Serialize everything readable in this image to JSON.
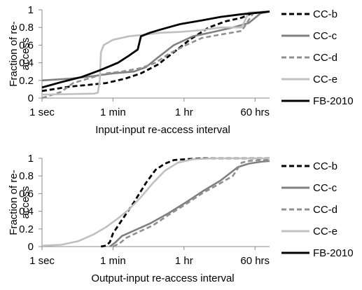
{
  "chart_data": [
    {
      "type": "line",
      "xlabel": "Input-input re-access interval",
      "ylabel": "Fraction of re-access",
      "ylabel_lines": [
        "Fraction of re-",
        "access"
      ],
      "x_scale": "log",
      "x_unit": "seconds",
      "xlim": [
        1,
        500000
      ],
      "ylim": [
        0,
        1
      ],
      "x_ticks": [
        {
          "value": 1,
          "label": "1 sec"
        },
        {
          "value": 60,
          "label": "1 min"
        },
        {
          "value": 3600,
          "label": "1 hr"
        },
        {
          "value": 216000,
          "label": "60 hrs"
        }
      ],
      "y_ticks": [
        0,
        0.2,
        0.4,
        0.6,
        0.8,
        1
      ],
      "grid": false,
      "legend": "right",
      "series": [
        {
          "name": "CC-b",
          "color": "#000000",
          "dash": "dashed",
          "x": [
            1,
            5,
            15,
            40,
            120,
            300,
            800,
            2000,
            5000,
            15000,
            40000,
            100000,
            200000,
            500000
          ],
          "y": [
            0.08,
            0.13,
            0.15,
            0.17,
            0.22,
            0.28,
            0.38,
            0.52,
            0.66,
            0.8,
            0.87,
            0.91,
            0.97,
            0.98
          ]
        },
        {
          "name": "CC-c",
          "color": "#808080",
          "dash": "solid",
          "x": [
            1,
            5,
            20,
            60,
            200,
            400,
            800,
            2000,
            6000,
            20000,
            60000,
            150000,
            300000,
            500000
          ],
          "y": [
            0.2,
            0.22,
            0.25,
            0.28,
            0.3,
            0.35,
            0.46,
            0.6,
            0.7,
            0.75,
            0.8,
            0.85,
            0.96,
            0.98
          ]
        },
        {
          "name": "CC-d",
          "color": "#909090",
          "dash": "dashed",
          "x": [
            1,
            3,
            6,
            10,
            20,
            40,
            100,
            300,
            700,
            1500,
            4000,
            10000,
            30000,
            100000,
            200000,
            500000
          ],
          "y": [
            0.0,
            0.07,
            0.17,
            0.2,
            0.24,
            0.28,
            0.3,
            0.34,
            0.4,
            0.5,
            0.6,
            0.68,
            0.72,
            0.76,
            0.97,
            0.98
          ]
        },
        {
          "name": "CC-e",
          "color": "#c0c0c0",
          "dash": "solid",
          "x": [
            1,
            20,
            25,
            28,
            30,
            35,
            60,
            150,
            400,
            900,
            3000,
            10000,
            30000,
            100000,
            150000,
            500000
          ],
          "y": [
            0.04,
            0.05,
            0.06,
            0.2,
            0.52,
            0.6,
            0.66,
            0.7,
            0.72,
            0.74,
            0.75,
            0.77,
            0.8,
            0.8,
            0.97,
            0.98
          ]
        },
        {
          "name": "FB-2010",
          "color": "#000000",
          "dash": "solid",
          "x": [
            1,
            3,
            10,
            30,
            80,
            150,
            250,
            300,
            500,
            1000,
            3000,
            10000,
            30000,
            100000,
            300000,
            500000
          ],
          "y": [
            0.12,
            0.18,
            0.24,
            0.32,
            0.4,
            0.48,
            0.55,
            0.7,
            0.74,
            0.78,
            0.84,
            0.88,
            0.92,
            0.95,
            0.97,
            0.98
          ]
        }
      ]
    },
    {
      "type": "line",
      "xlabel": "Output-input re-access interval",
      "ylabel": "Fraction of re-access",
      "ylabel_lines": [
        "Fraction of re-",
        "access"
      ],
      "x_scale": "log",
      "x_unit": "seconds",
      "xlim": [
        1,
        500000
      ],
      "ylim": [
        0,
        1
      ],
      "x_ticks": [
        {
          "value": 1,
          "label": "1 sec"
        },
        {
          "value": 60,
          "label": "1 min"
        },
        {
          "value": 3600,
          "label": "1 hr"
        },
        {
          "value": 216000,
          "label": "60 hrs"
        }
      ],
      "y_ticks": [
        0,
        0.2,
        0.4,
        0.6,
        0.8,
        1
      ],
      "grid": false,
      "legend": "right",
      "series": [
        {
          "name": "CC-b",
          "color": "#000000",
          "dash": "dashed",
          "x": [
            30,
            40,
            50,
            60,
            100,
            200,
            400,
            700,
            1200,
            2000,
            4000,
            10000,
            100000,
            500000
          ],
          "y": [
            0.0,
            0.01,
            0.05,
            0.15,
            0.3,
            0.5,
            0.72,
            0.87,
            0.94,
            0.98,
            0.99,
            1.0,
            1.0,
            1.0
          ]
        },
        {
          "name": "CC-c",
          "color": "#808080",
          "dash": "solid",
          "x": [
            50,
            70,
            100,
            200,
            500,
            1500,
            4000,
            10000,
            30000,
            80000,
            150000,
            300000,
            500000
          ],
          "y": [
            0.0,
            0.05,
            0.12,
            0.18,
            0.26,
            0.38,
            0.5,
            0.62,
            0.75,
            0.9,
            0.94,
            0.96,
            0.97
          ]
        },
        {
          "name": "CC-d",
          "color": "#909090",
          "dash": "dashed",
          "x": [
            60,
            90,
            130,
            250,
            600,
            1500,
            4000,
            10000,
            30000,
            60000,
            100000,
            150000,
            300000,
            500000
          ],
          "y": [
            0.0,
            0.04,
            0.1,
            0.16,
            0.24,
            0.36,
            0.48,
            0.6,
            0.72,
            0.8,
            0.95,
            0.97,
            0.98,
            0.98
          ]
        },
        {
          "name": "CC-e",
          "color": "#c0c0c0",
          "dash": "solid",
          "x": [
            1,
            3,
            8,
            20,
            40,
            80,
            150,
            300,
            600,
            1200,
            2500,
            6000,
            20000,
            100000,
            500000
          ],
          "y": [
            0.01,
            0.02,
            0.06,
            0.14,
            0.22,
            0.32,
            0.42,
            0.56,
            0.72,
            0.86,
            0.95,
            0.99,
            1.0,
            1.0,
            1.0
          ]
        },
        {
          "name": "FB-2010",
          "color": "#000000",
          "dash": "solid",
          "x": [],
          "y": []
        }
      ]
    }
  ]
}
